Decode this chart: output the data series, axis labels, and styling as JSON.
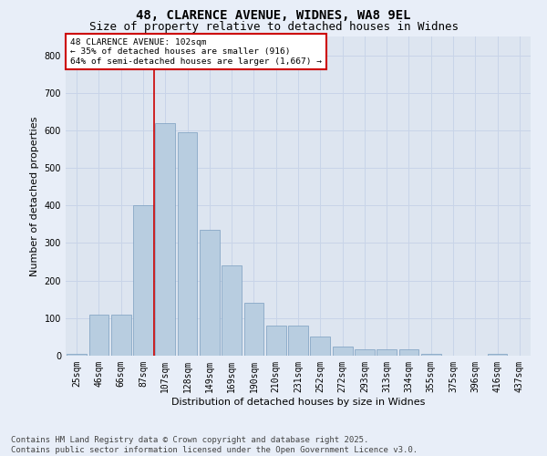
{
  "title_line1": "48, CLARENCE AVENUE, WIDNES, WA8 9EL",
  "title_line2": "Size of property relative to detached houses in Widnes",
  "xlabel": "Distribution of detached houses by size in Widnes",
  "ylabel": "Number of detached properties",
  "background_color": "#dde5f0",
  "bar_color": "#b8cde0",
  "bar_edge_color": "#7a9ec0",
  "fig_background": "#e8eef8",
  "categories": [
    "25sqm",
    "46sqm",
    "66sqm",
    "87sqm",
    "107sqm",
    "128sqm",
    "149sqm",
    "169sqm",
    "190sqm",
    "210sqm",
    "231sqm",
    "252sqm",
    "272sqm",
    "293sqm",
    "313sqm",
    "334sqm",
    "355sqm",
    "375sqm",
    "396sqm",
    "416sqm",
    "437sqm"
  ],
  "values": [
    5,
    110,
    110,
    400,
    620,
    595,
    335,
    240,
    140,
    80,
    80,
    50,
    25,
    18,
    18,
    18,
    5,
    0,
    0,
    5,
    0
  ],
  "ylim": [
    0,
    850
  ],
  "yticks": [
    0,
    100,
    200,
    300,
    400,
    500,
    600,
    700,
    800
  ],
  "vline_x_index": 4,
  "vline_color": "#cc0000",
  "annotation_text": "48 CLARENCE AVENUE: 102sqm\n← 35% of detached houses are smaller (916)\n64% of semi-detached houses are larger (1,667) →",
  "annotation_box_color": "#ffffff",
  "annotation_box_edge": "#cc0000",
  "footer_line1": "Contains HM Land Registry data © Crown copyright and database right 2025.",
  "footer_line2": "Contains public sector information licensed under the Open Government Licence v3.0.",
  "grid_color": "#c8d4e8",
  "title_fontsize": 10,
  "subtitle_fontsize": 9,
  "tick_fontsize": 7,
  "label_fontsize": 8,
  "footer_fontsize": 6.5
}
